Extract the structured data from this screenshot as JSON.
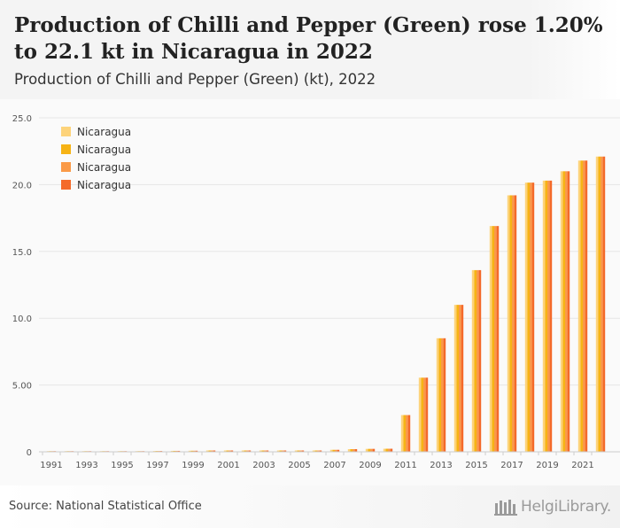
{
  "header": {
    "title": "Production of Chilli and Pepper (Green) rose 1.20% to 22.1 kt in Nicaragua in 2022",
    "subtitle": "Production of Chilli and Pepper (Green) (kt), 2022"
  },
  "footer": {
    "source": "Source: National Statistical Office",
    "logo_text": "HelgiLibrary."
  },
  "colors": {
    "series": [
      "#fdd37a",
      "#f6b315",
      "#fa9a48",
      "#f46a2a"
    ],
    "grid": "#e6e6e6",
    "axis_text": "#555555"
  },
  "chart_data": {
    "type": "bar",
    "title": "Production of Chilli and Pepper (Green) rose 1.20% to 22.1 kt in Nicaragua in 2022",
    "subtitle": "Production of Chilli and Pepper (Green) (kt), 2022",
    "xlabel": "",
    "ylabel": "",
    "ylim": [
      0,
      25
    ],
    "yticks": [
      "0",
      "5.00",
      "10.0",
      "15.0",
      "20.0",
      "25.0"
    ],
    "xtick_labels": [
      "1991",
      "1993",
      "1995",
      "1997",
      "1999",
      "2001",
      "2003",
      "2005",
      "2007",
      "2009",
      "2011",
      "2013",
      "2015",
      "2017",
      "2019",
      "2021"
    ],
    "grid": true,
    "legend_position": "top-left",
    "categories": [
      "1991",
      "1992",
      "1993",
      "1994",
      "1995",
      "1996",
      "1997",
      "1998",
      "1999",
      "2000",
      "2001",
      "2002",
      "2003",
      "2004",
      "2005",
      "2006",
      "2007",
      "2008",
      "2009",
      "2010",
      "2011",
      "2012",
      "2013",
      "2014",
      "2015",
      "2016",
      "2017",
      "2018",
      "2019",
      "2020",
      "2021",
      "2022"
    ],
    "series": [
      {
        "name": "Nicaragua",
        "values": [
          0.05,
          0.05,
          0.05,
          0.05,
          0.05,
          0.05,
          0.06,
          0.07,
          0.08,
          0.1,
          0.1,
          0.1,
          0.1,
          0.1,
          0.1,
          0.1,
          0.15,
          0.2,
          0.22,
          0.23,
          2.75,
          5.55,
          8.5,
          11.0,
          13.6,
          16.9,
          19.2,
          20.15,
          20.3,
          21.0,
          21.8,
          22.1
        ]
      },
      {
        "name": "Nicaragua",
        "values": [
          0.05,
          0.05,
          0.05,
          0.05,
          0.05,
          0.05,
          0.06,
          0.07,
          0.08,
          0.1,
          0.1,
          0.1,
          0.1,
          0.1,
          0.1,
          0.1,
          0.15,
          0.2,
          0.22,
          0.23,
          2.75,
          5.55,
          8.5,
          11.0,
          13.6,
          16.9,
          19.2,
          20.15,
          20.3,
          21.0,
          21.8,
          22.1
        ]
      },
      {
        "name": "Nicaragua",
        "values": [
          0.05,
          0.05,
          0.05,
          0.05,
          0.05,
          0.05,
          0.06,
          0.07,
          0.08,
          0.1,
          0.1,
          0.1,
          0.1,
          0.1,
          0.1,
          0.1,
          0.15,
          0.2,
          0.22,
          0.23,
          2.75,
          5.55,
          8.5,
          11.0,
          13.6,
          16.9,
          19.2,
          20.15,
          20.3,
          21.0,
          21.8,
          22.1
        ]
      },
      {
        "name": "Nicaragua",
        "values": [
          0.05,
          0.05,
          0.05,
          0.05,
          0.05,
          0.05,
          0.06,
          0.07,
          0.08,
          0.1,
          0.1,
          0.1,
          0.1,
          0.1,
          0.1,
          0.1,
          0.15,
          0.2,
          0.22,
          0.23,
          2.75,
          5.55,
          8.5,
          11.0,
          13.6,
          16.9,
          19.2,
          20.15,
          20.3,
          21.0,
          21.8,
          22.1
        ]
      }
    ]
  }
}
